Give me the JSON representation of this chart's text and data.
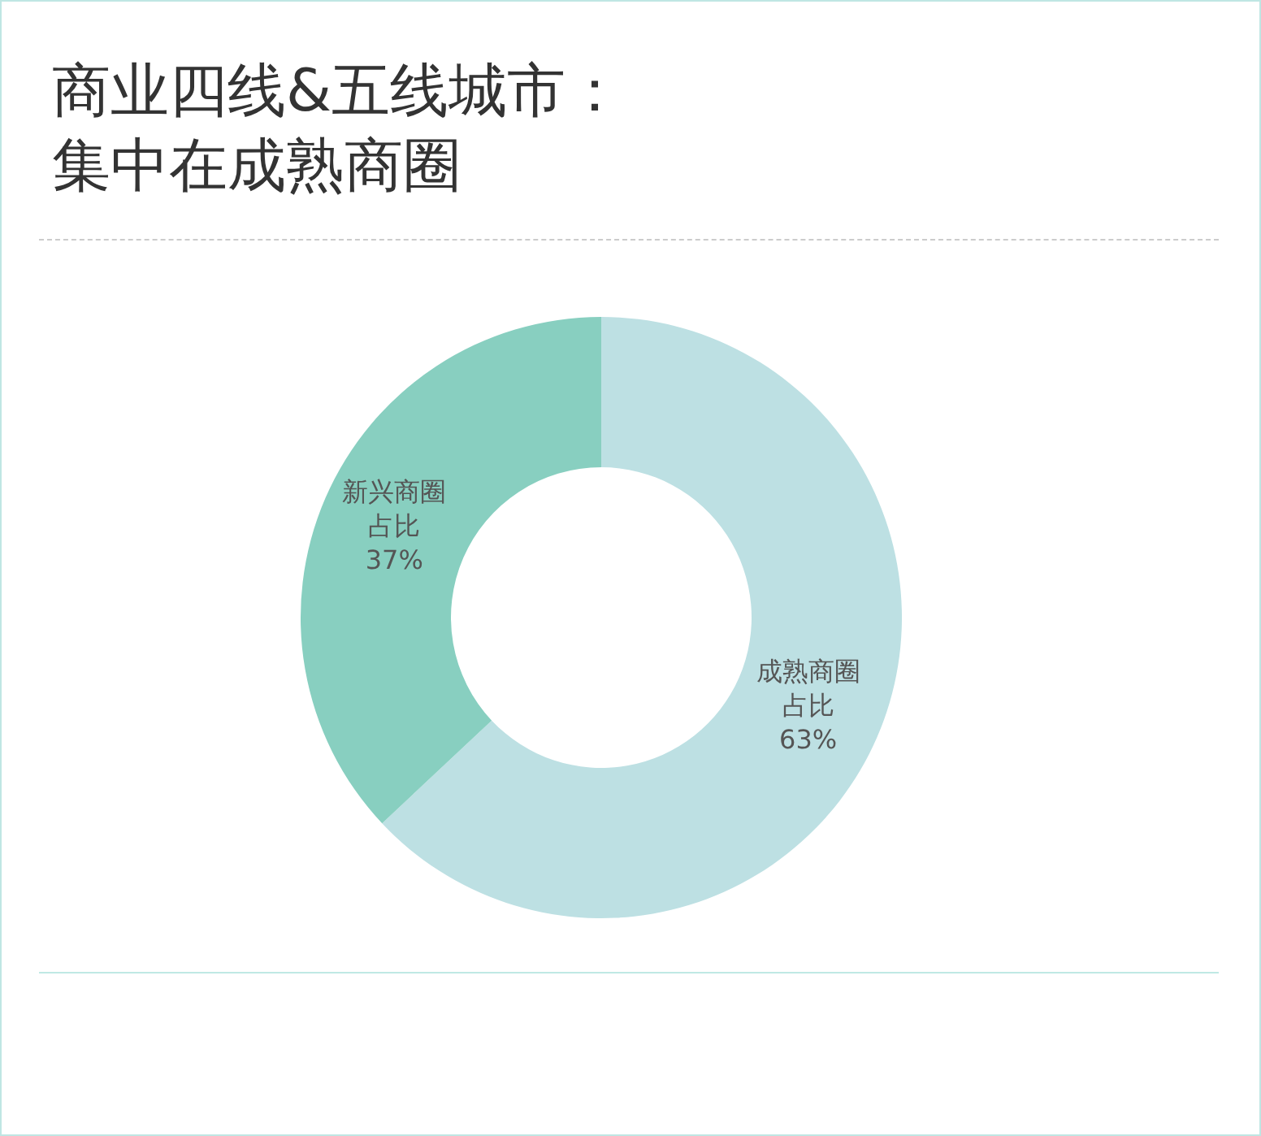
{
  "chart_data": {
    "type": "donut",
    "title": "商业四线&五线城市：集中在成熟商圈",
    "categories": [
      "成熟商圈占比",
      "新兴商圈占比"
    ],
    "values": [
      63,
      37
    ],
    "colors": [
      "#bde0e3",
      "#88cfc0"
    ],
    "value_labels": [
      "63%",
      "37%"
    ]
  }
}
